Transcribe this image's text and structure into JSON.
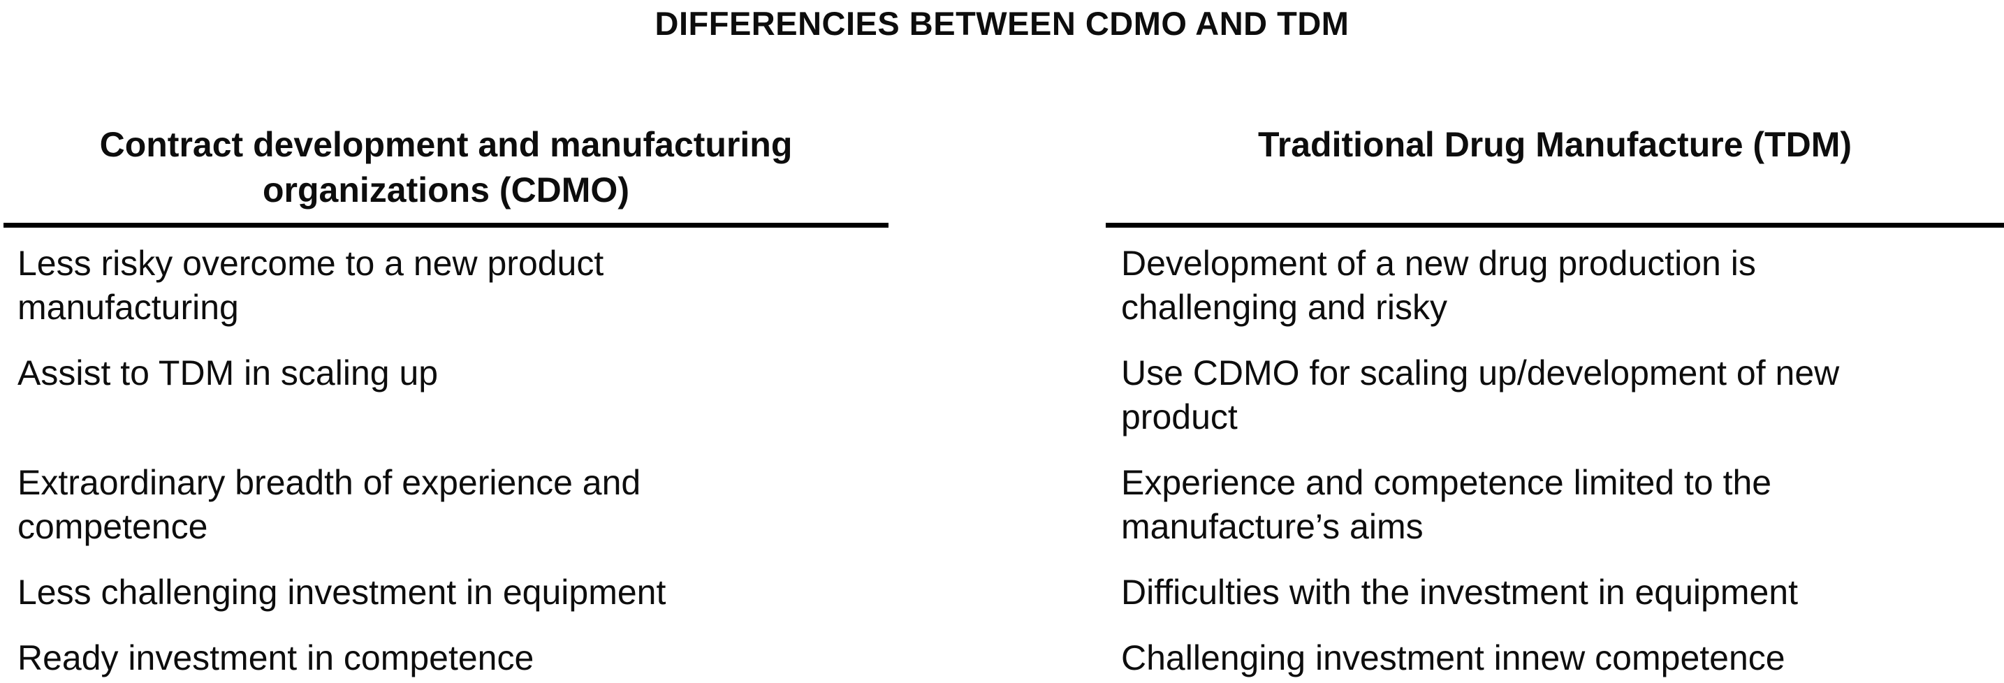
{
  "title": "DIFFERENCIES BETWEEN CDMO AND TDM",
  "colors": {
    "background": "#ffffff",
    "text": "#0d0d0d",
    "rule": "#000000"
  },
  "table": {
    "headers": {
      "cdmo": "Contract development and manufacturing\norganizations (CDMO)",
      "tdm": "Traditional Drug Manufacture (TDM)"
    },
    "rows": [
      {
        "cdmo": "Less risky overcome to a new product\nmanufacturing",
        "tdm": "Development of a new drug production is\nchallenging and risky"
      },
      {
        "cdmo": "Assist to TDM in scaling up",
        "tdm": "Use CDMO for scaling up/development of new\nproduct"
      },
      {
        "cdmo": "Extraordinary breadth of experience and\ncompetence",
        "tdm": "Experience and competence limited to the\nmanufacture’s aims"
      },
      {
        "cdmo": "Less challenging investment in equipment",
        "tdm": "Difficulties with the investment in equipment"
      },
      {
        "cdmo": "Ready investment in competence",
        "tdm": "Challenging investment innew competence"
      }
    ]
  }
}
